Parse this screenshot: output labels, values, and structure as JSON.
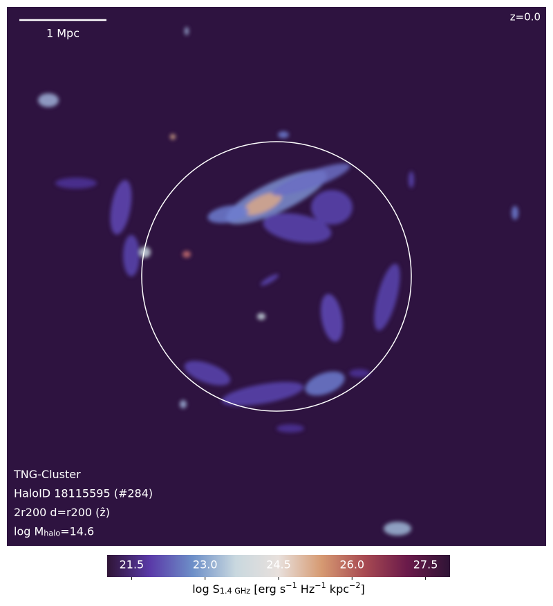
{
  "chart_data": {
    "type": "image",
    "redshift_label": "z=0.0",
    "scale_bar_label": "1 Mpc",
    "info_lines": [
      [
        {
          "text": "TNG-Cluster"
        }
      ],
      [
        {
          "text": "HaloID 18115595 (#284)"
        }
      ],
      [
        {
          "text": "2r200 d=r200 ("
        },
        {
          "text": "ẑ"
        },
        {
          "text": ")"
        }
      ],
      [
        {
          "text": "log M"
        },
        {
          "text": "halo",
          "shift": "sub"
        },
        {
          "text": "=14.6"
        }
      ]
    ],
    "colorbar": {
      "label_parts": [
        {
          "text": "log S"
        },
        {
          "text": "1.4 GHz",
          "shift": "sub"
        },
        {
          "text": " [erg s"
        },
        {
          "text": "−1",
          "shift": "super"
        },
        {
          "text": " Hz"
        },
        {
          "text": "−1",
          "shift": "super"
        },
        {
          "text": " kpc"
        },
        {
          "text": "−2",
          "shift": "super"
        },
        {
          "text": "]"
        }
      ],
      "clim": [
        21,
        28
      ],
      "ticks": [
        21.5,
        {
          "value": 23,
          "label": "23.0"
        },
        24.5,
        {
          "value": 26,
          "label": "26.0"
        },
        27.5
      ],
      "colormap": [
        "#2f1436",
        "#5a3aa8",
        "#6d8fc8",
        "#c9d8df",
        "#e8e0dc",
        "#d69a72",
        "#a84a52",
        "#6a1a4a",
        "#2f1436"
      ]
    },
    "background": "#2e1340",
    "circle_color": "#ffffff"
  }
}
